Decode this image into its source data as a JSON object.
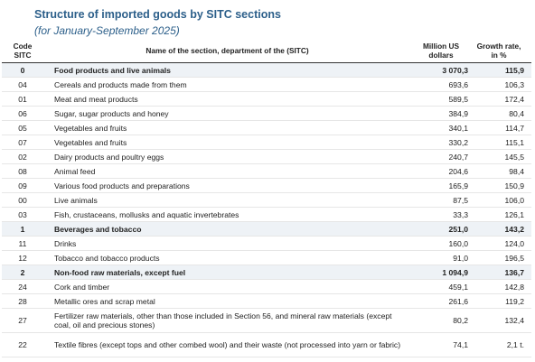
{
  "title": "Structure of imported goods by SITC sections",
  "subtitle": "(for January-September 2025)",
  "headers": {
    "code": "Code SITC",
    "name": "Name of the section, department of the (SITC)",
    "usd": "Million US dollars",
    "growth": "Growth rate, in %"
  },
  "rows": [
    {
      "code": "0",
      "name": "Food products and live animals",
      "usd": "3 070,3",
      "growth": "115,9",
      "section": true
    },
    {
      "code": "04",
      "name": "Cereals and products made from them",
      "usd": "693,6",
      "growth": "106,3"
    },
    {
      "code": "01",
      "name": "Meat and meat products",
      "usd": "589,5",
      "growth": "172,4"
    },
    {
      "code": "06",
      "name": "Sugar, sugar products and honey",
      "usd": "384,9",
      "growth": "80,4"
    },
    {
      "code": "05",
      "name": "Vegetables and fruits",
      "usd": "340,1",
      "growth": "114,7"
    },
    {
      "code": "07",
      "name": "Vegetables and fruits",
      "usd": "330,2",
      "growth": "115,1"
    },
    {
      "code": "02",
      "name": "Dairy products and poultry eggs",
      "usd": "240,7",
      "growth": "145,5"
    },
    {
      "code": "08",
      "name": "Animal feed",
      "usd": "204,6",
      "growth": "98,4"
    },
    {
      "code": "09",
      "name": "Various food products and preparations",
      "usd": "165,9",
      "growth": "150,9"
    },
    {
      "code": "00",
      "name": "Live animals",
      "usd": "87,5",
      "growth": "106,0"
    },
    {
      "code": "03",
      "name": "Fish, crustaceans, mollusks and aquatic invertebrates",
      "usd": "33,3",
      "growth": "126,1"
    },
    {
      "code": "1",
      "name": "Beverages and tobacco",
      "usd": "251,0",
      "growth": "143,2",
      "section": true
    },
    {
      "code": "11",
      "name": "Drinks",
      "usd": "160,0",
      "growth": "124,0"
    },
    {
      "code": "12",
      "name": "Tobacco and tobacco products",
      "usd": "91,0",
      "growth": "196,5"
    },
    {
      "code": "2",
      "name": "Non-food raw materials, except fuel",
      "usd": "1 094,9",
      "growth": "136,7",
      "section": true
    },
    {
      "code": "24",
      "name": "Cork and timber",
      "usd": "459,1",
      "growth": "142,8"
    },
    {
      "code": "28",
      "name": "Metallic ores and scrap metal",
      "usd": "261,6",
      "growth": "119,2"
    },
    {
      "code": "27",
      "name": "Fertilizer raw materials, other than those included in Section 56, and mineral raw materials (except coal, oil and precious stones)",
      "usd": "80,2",
      "growth": "132,4",
      "tall": true
    },
    {
      "code": "22",
      "name": "Textile fibres (except tops and other combed wool) and their waste (not processed into yarn or fabric)",
      "usd": "74,1",
      "growth": "2,1 t.",
      "tall": true
    }
  ]
}
